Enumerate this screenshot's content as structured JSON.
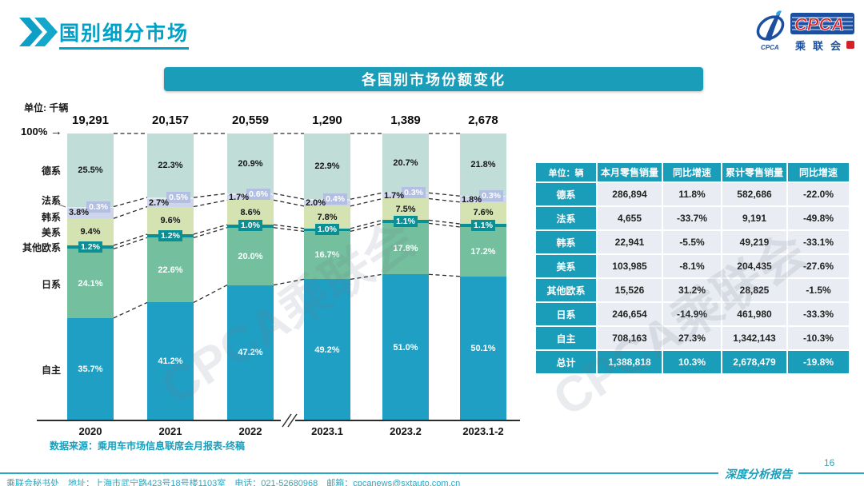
{
  "header": {
    "title": "国别细分市场",
    "logo": {
      "cpca": "CPCA",
      "name_cn": "乘联会",
      "caption": "CPCA"
    }
  },
  "banner": "各国别市场份额变化",
  "chart": {
    "unit_label": "单位: 千辆",
    "top_axis_label": "100%",
    "top_axis_arrow": "→",
    "source_note": "数据来源：乘用车市场信息联席会月报表-终稿"
  },
  "chart_data": {
    "type": "bar",
    "variant": "stacked-100-percent-column",
    "title": "各国别市场份额变化",
    "unit": "千辆",
    "gridlines": false,
    "ylim": [
      0,
      100
    ],
    "categories": [
      "2020",
      "2021",
      "2022",
      "2023.1",
      "2023.2",
      "2023.1-2"
    ],
    "totals": [
      "19,291",
      "20,157",
      "20,559",
      "1,290",
      "1,389",
      "2,678"
    ],
    "series": [
      {
        "name": "德系",
        "values": [
          25.5,
          22.3,
          20.9,
          22.9,
          20.7,
          21.8
        ],
        "color": "#c0ddd7",
        "label_style": "dark-center"
      },
      {
        "name": "法系",
        "values": [
          0.3,
          0.5,
          0.6,
          0.4,
          0.3,
          0.3
        ],
        "color": "#e7eaf5",
        "label_style": "badge-right",
        "badge_color": "#b3bfe2"
      },
      {
        "name": "韩系",
        "values": [
          3.8,
          2.7,
          1.7,
          2.0,
          1.7,
          1.8
        ],
        "color": "#ccd5ec",
        "label_style": "dark-left"
      },
      {
        "name": "美系",
        "values": [
          9.4,
          9.6,
          8.6,
          7.8,
          7.5,
          7.6
        ],
        "color": "#d5e3b3",
        "label_style": "dark-center"
      },
      {
        "name": "其他欧系",
        "values": [
          1.2,
          1.2,
          1.0,
          1.0,
          1.1,
          1.1
        ],
        "color": "#0a8f94",
        "label_style": "badge-center",
        "badge_color": "#0a8f94"
      },
      {
        "name": "日系",
        "values": [
          24.1,
          22.6,
          20.0,
          16.7,
          17.8,
          17.2
        ],
        "color": "#74c09e",
        "label_style": "white-center"
      },
      {
        "name": "自主",
        "values": [
          35.7,
          41.2,
          47.2,
          49.2,
          51.0,
          50.1
        ],
        "color": "#1f9fc4",
        "label_style": "white-center"
      }
    ]
  },
  "table": {
    "headers": [
      "单位：辆",
      "本月零售销量",
      "同比增速",
      "累计零售销量",
      "同比增速"
    ],
    "rows": [
      [
        "德系",
        "286,894",
        "11.8%",
        "582,686",
        "-22.0%"
      ],
      [
        "法系",
        "4,655",
        "-33.7%",
        "9,191",
        "-49.8%"
      ],
      [
        "韩系",
        "22,941",
        "-5.5%",
        "49,219",
        "-33.1%"
      ],
      [
        "美系",
        "103,985",
        "-8.1%",
        "204,435",
        "-27.6%"
      ],
      [
        "其他欧系",
        "15,526",
        "31.2%",
        "28,825",
        "-1.5%"
      ],
      [
        "日系",
        "246,654",
        "-14.9%",
        "461,980",
        "-33.3%"
      ],
      [
        "自主",
        "708,163",
        "27.3%",
        "1,342,143",
        "-10.3%"
      ],
      [
        "总计",
        "1,388,818",
        "10.3%",
        "2,678,479",
        "-19.8%"
      ]
    ]
  },
  "footer": {
    "contact": "乘联会秘书处　地址：上海市武宁路423号18号楼1103室　电话：021-52680968　邮箱：cpcanews@sxtauto.com.cn",
    "report_label": "深度分析报告",
    "page": "16"
  },
  "watermark": "CPCA乘联会",
  "colors": {
    "accent_teal": "#1a9db8",
    "title_teal": "#00a2c8",
    "logo_blue": "#1d4fa0",
    "logo_red": "#d42026",
    "dash_line": "#2b2b2b",
    "table_body_bg": "#e9edf3"
  }
}
